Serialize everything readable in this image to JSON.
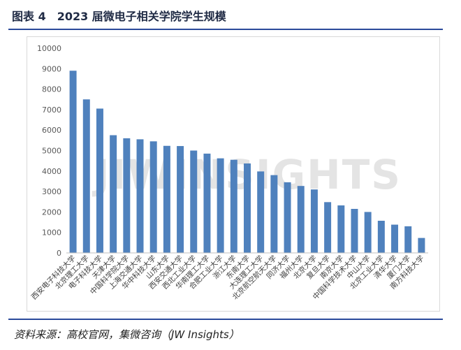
{
  "figure": {
    "title": "图表 4　2023 届微电子相关学院学生规模",
    "source": "资料来源：高校官网，集微咨询（JW Insights）",
    "watermark": "JIWINSIGHTS"
  },
  "colors": {
    "bar": "#4f81bd",
    "rule": "#2b4a9b"
  },
  "chart_data": {
    "type": "bar",
    "title": "",
    "xlabel": "",
    "ylabel": "",
    "ylim": [
      0,
      10000
    ],
    "yticks": [
      0,
      1000,
      2000,
      3000,
      4000,
      5000,
      6000,
      7000,
      8000,
      9000,
      10000
    ],
    "grid": false,
    "legend": "none",
    "categories": [
      "西安电子科技大学",
      "北京理工大学",
      "电子科技大学",
      "天津大学",
      "中国科学院大学",
      "上海交通大学",
      "华中科技大学",
      "山东大学",
      "西安交通大学",
      "西北工业大学",
      "华南理工大学",
      "合肥工业大学",
      "浙江大学",
      "东南大学",
      "大连理工大学",
      "北京航空航天大学",
      "同济大学",
      "福州大学",
      "北京大学",
      "复旦大学",
      "南京大学",
      "中国科学技术大学",
      "中山大学",
      "北京工业大学",
      "清华大学",
      "厦门大学",
      "南方科技大学"
    ],
    "values": [
      8900,
      7500,
      7050,
      5750,
      5600,
      5550,
      5450,
      5230,
      5220,
      5000,
      4850,
      4620,
      4550,
      4370,
      3980,
      3800,
      3450,
      3270,
      3100,
      2480,
      2320,
      2150,
      2000,
      1570,
      1380,
      1300,
      730
    ]
  }
}
